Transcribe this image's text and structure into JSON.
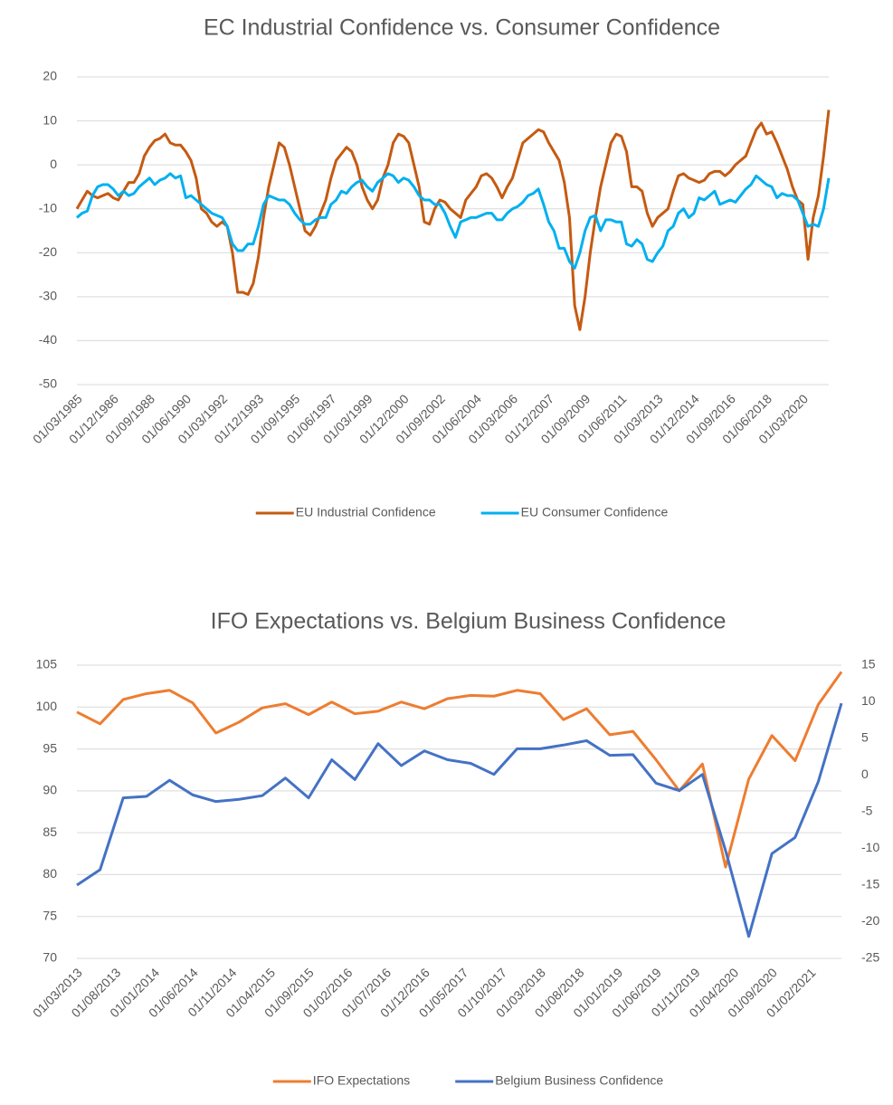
{
  "chart_data": [
    {
      "type": "line",
      "title": "EC Industrial Confidence vs. Consumer Confidence",
      "x": [
        "01/03/1985",
        "01/06/1985",
        "01/09/1985",
        "01/12/1985",
        "01/03/1986",
        "01/06/1986",
        "01/09/1986",
        "01/12/1986",
        "01/03/1987",
        "01/06/1987",
        "01/09/1987",
        "01/12/1987",
        "01/03/1988",
        "01/06/1988",
        "01/09/1988",
        "01/12/1988",
        "01/03/1989",
        "01/06/1989",
        "01/09/1989",
        "01/12/1989",
        "01/03/1990",
        "01/06/1990",
        "01/09/1990",
        "01/12/1990",
        "01/03/1991",
        "01/06/1991",
        "01/09/1991",
        "01/12/1991",
        "01/03/1992",
        "01/06/1992",
        "01/09/1992",
        "01/12/1992",
        "01/03/1993",
        "01/06/1993",
        "01/09/1993",
        "01/12/1993",
        "01/03/1994",
        "01/06/1994",
        "01/09/1994",
        "01/12/1994",
        "01/03/1995",
        "01/06/1995",
        "01/09/1995",
        "01/12/1995",
        "01/03/1996",
        "01/06/1996",
        "01/09/1996",
        "01/12/1996",
        "01/03/1997",
        "01/06/1997",
        "01/09/1997",
        "01/12/1997",
        "01/03/1998",
        "01/06/1998",
        "01/09/1998",
        "01/12/1998",
        "01/03/1999",
        "01/06/1999",
        "01/09/1999",
        "01/12/1999",
        "01/03/2000",
        "01/06/2000",
        "01/09/2000",
        "01/12/2000",
        "01/03/2001",
        "01/06/2001",
        "01/09/2001",
        "01/12/2001",
        "01/03/2002",
        "01/06/2002",
        "01/09/2002",
        "01/12/2002",
        "01/03/2003",
        "01/06/2003",
        "01/09/2003",
        "01/12/2003",
        "01/03/2004",
        "01/06/2004",
        "01/09/2004",
        "01/12/2004",
        "01/03/2005",
        "01/06/2005",
        "01/09/2005",
        "01/12/2005",
        "01/03/2006",
        "01/06/2006",
        "01/09/2006",
        "01/12/2006",
        "01/03/2007",
        "01/06/2007",
        "01/09/2007",
        "01/12/2007",
        "01/03/2008",
        "01/06/2008",
        "01/09/2008",
        "01/12/2008",
        "01/03/2009",
        "01/06/2009",
        "01/09/2009",
        "01/12/2009",
        "01/03/2010",
        "01/06/2010",
        "01/09/2010",
        "01/12/2010",
        "01/03/2011",
        "01/06/2011",
        "01/09/2011",
        "01/12/2011",
        "01/03/2012",
        "01/06/2012",
        "01/09/2012",
        "01/12/2012",
        "01/03/2013",
        "01/06/2013",
        "01/09/2013",
        "01/12/2013",
        "01/03/2014",
        "01/06/2014",
        "01/09/2014",
        "01/12/2014",
        "01/03/2015",
        "01/06/2015",
        "01/09/2015",
        "01/12/2015",
        "01/03/2016",
        "01/06/2016",
        "01/09/2016",
        "01/12/2016",
        "01/03/2017",
        "01/06/2017",
        "01/09/2017",
        "01/12/2017",
        "01/03/2018",
        "01/06/2018",
        "01/09/2018",
        "01/12/2018",
        "01/03/2019",
        "01/06/2019",
        "01/09/2019",
        "01/12/2019",
        "01/03/2020",
        "01/06/2020",
        "01/09/2020",
        "01/12/2020",
        "01/03/2021",
        "01/06/2021"
      ],
      "xlim": [
        "01/03/1985",
        "01/06/2021"
      ],
      "xticks": [
        "01/03/1985",
        "01/12/1986",
        "01/09/1988",
        "01/06/1990",
        "01/03/1992",
        "01/12/1993",
        "01/09/1995",
        "01/06/1997",
        "01/03/1999",
        "01/12/2000",
        "01/09/2002",
        "01/06/2004",
        "01/03/2006",
        "01/12/2007",
        "01/09/2009",
        "01/06/2011",
        "01/03/2013",
        "01/12/2014",
        "01/09/2016",
        "01/06/2018",
        "01/03/2020"
      ],
      "ylim": [
        -50,
        20
      ],
      "yticks": [
        -50,
        -40,
        -30,
        -20,
        -10,
        0,
        10,
        20
      ],
      "grid": true,
      "legend": "bottom",
      "series": [
        {
          "name": "EU Industrial Confidence",
          "color": "#c55a11",
          "values": [
            -10,
            -8,
            -6,
            -7,
            -7.5,
            -7,
            -6.5,
            -7.5,
            -8,
            -6,
            -4,
            -4,
            -2,
            2,
            4,
            5.5,
            6,
            7,
            5,
            4.5,
            4.5,
            3,
            1,
            -3,
            -10,
            -11,
            -13,
            -14,
            -13,
            -14,
            -20,
            -29,
            -29,
            -29.5,
            -27,
            -21,
            -12,
            -5,
            0,
            5,
            4,
            0,
            -5,
            -10,
            -15,
            -16,
            -14,
            -11,
            -8,
            -3,
            1,
            2.5,
            4,
            3,
            0,
            -5,
            -8,
            -10,
            -8,
            -3,
            0,
            5,
            7,
            6.5,
            5,
            0,
            -5,
            -13,
            -13.5,
            -10,
            -8,
            -8.5,
            -10,
            -11,
            -12,
            -8,
            -6.5,
            -5,
            -2.5,
            -2,
            -3,
            -5,
            -7.5,
            -5,
            -3,
            1,
            5,
            6,
            7,
            8,
            7.5,
            5,
            3,
            1,
            -4,
            -12,
            -32,
            -37.5,
            -30,
            -20,
            -12,
            -5,
            0,
            5,
            7,
            6.5,
            3,
            -5,
            -5,
            -6,
            -11,
            -14,
            -12,
            -11,
            -10,
            -6,
            -2.5,
            -2,
            -3,
            -3.5,
            -4,
            -3.5,
            -2,
            -1.5,
            -1.5,
            -2.5,
            -1.5,
            0,
            1,
            2,
            5,
            8,
            9.5,
            7,
            7.5,
            5,
            2,
            -1,
            -5,
            -8,
            -9,
            -21.5,
            -12,
            -7,
            2,
            12.5
          ]
        },
        {
          "name": "EU Consumer Confidence",
          "color": "#00b0f0",
          "values": [
            -12,
            -11,
            -10.5,
            -7,
            -5,
            -4.5,
            -4.5,
            -5.5,
            -7,
            -6,
            -7,
            -6.5,
            -5,
            -4,
            -3,
            -4.5,
            -3.5,
            -3,
            -2,
            -3,
            -2.5,
            -7.5,
            -7,
            -8,
            -9,
            -10,
            -11,
            -11.5,
            -12,
            -14,
            -18,
            -19.5,
            -19.5,
            -18,
            -18,
            -14,
            -9,
            -7,
            -7.5,
            -8,
            -8,
            -9,
            -11,
            -12.5,
            -13.5,
            -13.5,
            -12.5,
            -12,
            -12,
            -9,
            -8,
            -6,
            -6.5,
            -5,
            -4,
            -3.5,
            -5,
            -6,
            -4,
            -3,
            -2,
            -2.5,
            -4,
            -3,
            -3.5,
            -5,
            -7,
            -8,
            -8,
            -9,
            -9,
            -11,
            -14,
            -16.5,
            -13,
            -12.5,
            -12,
            -12,
            -11.5,
            -11,
            -11,
            -12.5,
            -12.5,
            -11,
            -10,
            -9.5,
            -8.5,
            -7,
            -6.5,
            -5.5,
            -9,
            -13,
            -15,
            -19,
            -19,
            -22,
            -23.5,
            -20,
            -15,
            -12,
            -11.5,
            -15,
            -12.5,
            -12.5,
            -13,
            -13,
            -18,
            -18.5,
            -17,
            -18,
            -21.5,
            -22,
            -20,
            -18.5,
            -15,
            -14,
            -11,
            -10,
            -12,
            -11,
            -7.5,
            -8,
            -7,
            -6,
            -9,
            -8.5,
            -8,
            -8.5,
            -7,
            -5.5,
            -4.5,
            -2.5,
            -3.5,
            -4.5,
            -5,
            -7.5,
            -6.5,
            -7,
            -7,
            -8,
            -11,
            -14,
            -13.5,
            -14,
            -10,
            -3
          ]
        }
      ]
    },
    {
      "type": "line",
      "title": "IFO Expectations vs. Belgium Business Confidence",
      "x": [
        "01/03/2013",
        "01/06/2013",
        "01/09/2013",
        "01/12/2013",
        "01/03/2014",
        "01/06/2014",
        "01/09/2014",
        "01/12/2014",
        "01/03/2015",
        "01/06/2015",
        "01/09/2015",
        "01/12/2015",
        "01/03/2016",
        "01/06/2016",
        "01/09/2016",
        "01/12/2016",
        "01/03/2017",
        "01/06/2017",
        "01/09/2017",
        "01/12/2017",
        "01/03/2018",
        "01/06/2018",
        "01/09/2018",
        "01/12/2018",
        "01/03/2019",
        "01/06/2019",
        "01/09/2019",
        "01/12/2019",
        "01/03/2020",
        "01/06/2020",
        "01/09/2020",
        "01/12/2020",
        "01/03/2021",
        "01/06/2021"
      ],
      "xlim": [
        "01/03/2013",
        "01/06/2021"
      ],
      "xticks": [
        "01/03/2013",
        "01/08/2013",
        "01/01/2014",
        "01/06/2014",
        "01/11/2014",
        "01/04/2015",
        "01/09/2015",
        "01/02/2016",
        "01/07/2016",
        "01/12/2016",
        "01/05/2017",
        "01/10/2017",
        "01/03/2018",
        "01/08/2018",
        "01/01/2019",
        "01/06/2019",
        "01/11/2019",
        "01/04/2020",
        "01/09/2020",
        "01/02/2021"
      ],
      "ylim": [
        70,
        105
      ],
      "yticks": [
        70,
        75,
        80,
        85,
        90,
        95,
        100,
        105
      ],
      "y2lim": [
        -25,
        15
      ],
      "y2ticks": [
        -25,
        -20,
        -15,
        -10,
        -5,
        0,
        5,
        10,
        15
      ],
      "grid": true,
      "legend": "bottom",
      "series": [
        {
          "name": "IFO Expectations",
          "color": "#ed7d31",
          "values": [
            99.4,
            98,
            100.9,
            101.6,
            102,
            100.5,
            96.9,
            98.2,
            99.9,
            100.4,
            99.1,
            100.6,
            99.2,
            99.5,
            100.6,
            99.8,
            101,
            101.4,
            101.3,
            102,
            101.6,
            98.5,
            99.8,
            96.7,
            97.1,
            93.7,
            90,
            93.2,
            80.9,
            91.4,
            96.6,
            93.6,
            100.3,
            104.2
          ]
        },
        {
          "name": "Belgium Business Confidence",
          "color": "#4472c4",
          "axis": "y2",
          "values": [
            -15,
            -12.9,
            -3.1,
            -2.9,
            -0.7,
            -2.7,
            -3.6,
            -3.3,
            -2.8,
            -0.4,
            -3.1,
            2.1,
            -0.6,
            4.3,
            1.3,
            3.3,
            2.1,
            1.6,
            0.1,
            3.6,
            3.6,
            4.1,
            4.7,
            2.7,
            2.8,
            -1.1,
            -2.1,
            0.1,
            -10.3,
            -22,
            -10.7,
            -8.5,
            -0.9,
            9.8
          ]
        }
      ]
    }
  ]
}
